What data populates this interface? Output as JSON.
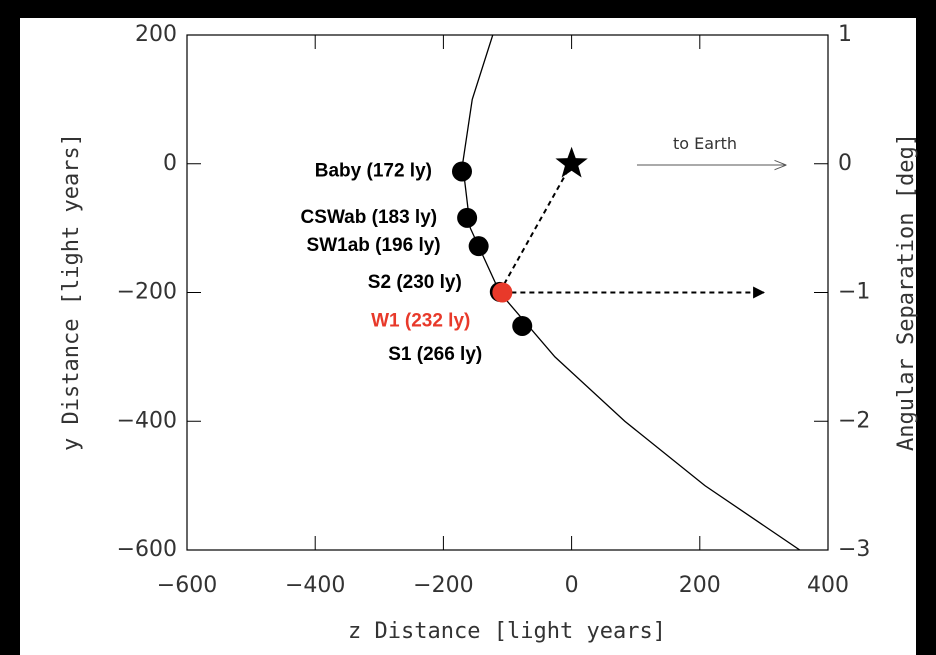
{
  "chart_data": {
    "type": "scatter",
    "xlabel": "z Distance [light years]",
    "ylabel": "y Distance [light years]",
    "y2label": "Angular Separation [deg]",
    "xlim": [
      -600,
      400
    ],
    "ylim": [
      -600,
      200
    ],
    "y2lim": [
      -3,
      1
    ],
    "xticks": [
      {
        "value": -600,
        "label": "−600"
      },
      {
        "value": -400,
        "label": "−400"
      },
      {
        "value": -200,
        "label": "−200"
      },
      0,
      200,
      400
    ],
    "yticks": [
      {
        "value": -600,
        "label": "−600"
      },
      {
        "value": -400,
        "label": "−400"
      },
      {
        "value": -200,
        "label": "−200"
      },
      0,
      200
    ],
    "y2ticks": [
      {
        "value": -3,
        "label": "−3"
      },
      {
        "value": -2,
        "label": "−2"
      },
      {
        "value": -1,
        "label": "−1"
      },
      0,
      1
    ],
    "curve": {
      "color": "#000000",
      "x": [
        -123,
        -155,
        -170,
        -158,
        -112,
        -26,
        83,
        208,
        356
      ],
      "y": [
        200,
        100,
        0,
        -100,
        -200,
        -300,
        -400,
        -500,
        -600
      ]
    },
    "points": [
      {
        "label": "Baby (172 ly)",
        "x": -171,
        "y": -12,
        "color": "#000000"
      },
      {
        "label": "CSWab (183 ly)",
        "x": -163,
        "y": -84,
        "color": "#000000"
      },
      {
        "label": "SW1ab (196 ly)",
        "x": -145,
        "y": -128,
        "color": "#000000"
      },
      {
        "label": "S2 (230 ly)",
        "x": -112,
        "y": -199,
        "color": "#000000"
      },
      {
        "label": "W1 (232 ly)",
        "x": -108,
        "y": -200,
        "color": "#e8392a"
      },
      {
        "label": "S1 (266 ly)",
        "x": -77,
        "y": -252,
        "color": "#000000"
      }
    ],
    "star": {
      "x": 0,
      "y": 0
    },
    "arrows": [
      {
        "from": [
          -112,
          -199
        ],
        "to": [
          0,
          0
        ],
        "style": "dashed",
        "head": false
      },
      {
        "from": [
          -108,
          -200
        ],
        "to": [
          300,
          -200
        ],
        "style": "dashed",
        "head": true
      }
    ],
    "earth_arrow": {
      "label": "to Earth",
      "from": [
        102,
        -2
      ],
      "to": [
        333,
        -2
      ]
    }
  }
}
